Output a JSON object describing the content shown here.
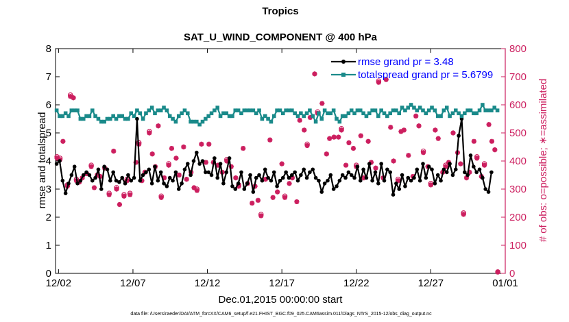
{
  "chart_data": {
    "type": "line",
    "title": "Tropics",
    "subtitle": "SAT_U_WIND_COMPONENT @ 400 hPa",
    "xlabel": "Dec.01,2015 00:00:00 start",
    "ylabel_left": "rmse and totalspread",
    "ylabel_right": "# of obs: o=possible; ∗=assimilated",
    "footnote": "data file: /Users/raeder/DAI/ATM_forcXX/CAM6_setup/f.e21.FHIST_BGC.f09_025.CAM6assim.011/Diags_NTrS_2015-12/obs_diag_output.nc",
    "x_unit": "days since Dec.01,2015 00:00",
    "xlim": [
      0.8,
      31.0
    ],
    "ylim_left": [
      0,
      8
    ],
    "ylim_right": [
      0,
      800
    ],
    "xticks": [
      1,
      6,
      11,
      16,
      21,
      26,
      31
    ],
    "xtick_labels": [
      "12/02",
      "12/07",
      "12/12",
      "12/17",
      "12/22",
      "12/27",
      "01/01"
    ],
    "yticks_left": [
      0,
      1,
      2,
      3,
      4,
      5,
      6,
      7,
      8
    ],
    "yticks_right": [
      0,
      100,
      200,
      300,
      400,
      500,
      600,
      700,
      800
    ],
    "colors": {
      "rmse": "#000000",
      "spread": "#1a8a8a",
      "obs": "#cc1f5f",
      "legend_text": "#0000ff"
    },
    "legend": {
      "position": "top-right",
      "entries": [
        "rmse grand pr = 3.48",
        "totalspread grand pr = 5.6799"
      ]
    },
    "series": [
      {
        "name": "rmse",
        "axis": "left",
        "values": [
          3.9,
          4.0,
          3.3,
          2.85,
          3.2,
          3.5,
          3.8,
          3.2,
          3.3,
          3.5,
          3.6,
          3.5,
          3.3,
          3.4,
          3.7,
          3.0,
          3.8,
          3.7,
          3.3,
          3.6,
          3.3,
          3.25,
          3.4,
          3.2,
          3.5,
          3.3,
          3.4,
          5.5,
          3.3,
          3.5,
          3.6,
          3.7,
          3.2,
          3.8,
          3.3,
          3.6,
          3.2,
          3.1,
          3.4,
          3.3,
          3.6,
          3.0,
          3.2,
          3.7,
          3.9,
          3.5,
          4.0,
          4.3,
          3.9,
          4.0,
          3.6,
          3.6,
          3.5,
          4.1,
          3.4,
          3.9,
          3.2,
          3.6,
          4.1,
          3.1,
          3.0,
          3.2,
          3.6,
          3.0,
          3.2,
          3.5,
          2.9,
          3.4,
          3.5,
          3.3,
          3.7,
          3.4,
          3.3,
          3.6,
          3.1,
          3.3,
          3.4,
          3.6,
          3.4,
          3.5,
          3.6,
          3.3,
          3.5,
          3.7,
          3.4,
          3.6,
          3.7,
          3.4,
          3.3,
          2.9,
          3.2,
          3.3,
          3.5,
          3.0,
          3.1,
          3.3,
          3.5,
          3.4,
          3.6,
          3.5,
          3.4,
          3.8,
          3.3,
          3.7,
          3.4,
          3.9,
          3.3,
          3.6,
          3.2,
          3.9,
          3.3,
          3.7,
          3.6,
          2.8,
          3.2,
          3.0,
          3.5,
          3.1,
          3.4,
          3.3,
          3.4,
          3.7,
          3.3,
          3.9,
          3.4,
          3.8,
          3.7,
          3.2,
          3.5,
          3.3,
          3.7,
          3.6,
          3.9,
          3.5,
          3.7,
          4.9,
          5.5,
          3.6,
          3.5,
          4.2,
          3.8,
          3.6,
          3.7,
          3.4,
          3.0,
          2.9,
          3.6
        ],
        "x_start": 0.875,
        "x_step": 0.2
      },
      {
        "name": "totalspread",
        "axis": "left",
        "values": [
          5.8,
          5.6,
          5.6,
          5.7,
          5.6,
          5.8,
          5.8,
          5.8,
          5.5,
          5.5,
          5.6,
          5.6,
          5.8,
          5.6,
          5.5,
          5.4,
          5.4,
          5.5,
          5.5,
          5.6,
          5.5,
          5.6,
          5.6,
          5.5,
          5.5,
          5.7,
          5.6,
          5.8,
          5.7,
          5.5,
          5.7,
          5.8,
          5.9,
          5.7,
          5.8,
          5.8,
          5.9,
          5.8,
          5.6,
          5.5,
          5.4,
          5.6,
          5.7,
          5.8,
          5.7,
          5.4,
          5.4,
          5.4,
          5.3,
          5.4,
          5.5,
          5.6,
          5.7,
          5.8,
          5.9,
          5.6,
          5.7,
          5.7,
          5.6,
          5.6,
          5.8,
          5.8,
          5.7,
          5.8,
          5.8,
          5.8,
          5.8,
          5.7,
          5.8,
          5.5,
          5.6,
          5.5,
          5.4,
          5.6,
          5.8,
          5.8,
          5.7,
          5.8,
          5.8,
          5.8,
          5.7,
          5.6,
          5.7,
          5.6,
          5.7,
          5.8,
          5.6,
          5.4,
          5.7,
          5.5,
          5.8,
          5.7,
          5.7,
          5.8,
          5.5,
          5.4,
          5.6,
          5.6,
          5.7,
          5.8,
          5.7,
          5.8,
          5.8,
          5.7,
          5.6,
          5.7,
          5.8,
          5.8,
          5.6,
          5.8,
          5.7,
          5.6,
          5.7,
          5.8,
          5.8,
          5.7,
          5.9,
          5.8,
          5.9,
          6.0,
          5.9,
          5.8,
          5.9,
          5.8,
          5.7,
          5.8,
          5.9,
          5.8,
          5.6,
          5.6,
          5.8,
          5.9,
          5.6,
          5.7,
          5.8,
          5.7,
          5.6,
          5.7,
          5.8,
          5.8,
          5.7,
          5.7,
          5.8,
          6.0,
          5.8,
          5.8,
          5.8,
          5.9,
          5.8
        ],
        "x_start": 0.875,
        "x_step": 0.2
      }
    ],
    "obs_assimilated": [
      [
        0.9,
        410
      ],
      [
        1.1,
        405
      ],
      [
        1.3,
        470
      ],
      [
        1.6,
        310
      ],
      [
        1.8,
        630
      ],
      [
        2.0,
        625
      ],
      [
        2.2,
        330
      ],
      [
        2.4,
        325
      ],
      [
        2.6,
        340
      ],
      [
        2.9,
        355
      ],
      [
        3.2,
        380
      ],
      [
        3.4,
        305
      ],
      [
        3.6,
        350
      ],
      [
        3.8,
        345
      ],
      [
        4.1,
        375
      ],
      [
        4.4,
        280
      ],
      [
        4.7,
        435
      ],
      [
        4.9,
        300
      ],
      [
        5.1,
        245
      ],
      [
        5.4,
        275
      ],
      [
        5.6,
        330
      ],
      [
        5.8,
        280
      ],
      [
        6.2,
        395
      ],
      [
        6.4,
        460
      ],
      [
        6.6,
        330
      ],
      [
        6.8,
        360
      ],
      [
        7.1,
        500
      ],
      [
        7.3,
        425
      ],
      [
        7.5,
        380
      ],
      [
        7.7,
        525
      ],
      [
        7.9,
        270
      ],
      [
        8.1,
        340
      ],
      [
        8.4,
        385
      ],
      [
        8.6,
        445
      ],
      [
        8.9,
        410
      ],
      [
        9.1,
        350
      ],
      [
        9.4,
        450
      ],
      [
        9.6,
        335
      ],
      [
        9.9,
        360
      ],
      [
        10.1,
        305
      ],
      [
        10.3,
        295
      ],
      [
        10.6,
        460
      ],
      [
        10.9,
        395
      ],
      [
        11.1,
        460
      ],
      [
        11.4,
        395
      ],
      [
        11.7,
        385
      ],
      [
        12.0,
        360
      ],
      [
        12.3,
        400
      ],
      [
        12.6,
        380
      ],
      [
        12.9,
        340
      ],
      [
        13.1,
        310
      ],
      [
        13.4,
        445
      ],
      [
        13.7,
        320
      ],
      [
        14.0,
        250
      ],
      [
        14.2,
        310
      ],
      [
        14.4,
        260
      ],
      [
        14.6,
        205
      ],
      [
        14.9,
        335
      ],
      [
        15.2,
        475
      ],
      [
        15.4,
        270
      ],
      [
        15.7,
        290
      ],
      [
        16.0,
        390
      ],
      [
        16.2,
        270
      ],
      [
        16.5,
        320
      ],
      [
        16.7,
        340
      ],
      [
        17.0,
        255
      ],
      [
        17.2,
        545
      ],
      [
        17.5,
        510
      ],
      [
        17.7,
        455
      ],
      [
        17.9,
        555
      ],
      [
        18.2,
        710
      ],
      [
        18.4,
        570
      ],
      [
        18.7,
        605
      ],
      [
        19.0,
        425
      ],
      [
        19.2,
        480
      ],
      [
        19.5,
        485
      ],
      [
        19.8,
        485
      ],
      [
        20.0,
        510
      ],
      [
        20.3,
        385
      ],
      [
        20.5,
        465
      ],
      [
        20.8,
        445
      ],
      [
        21.0,
        380
      ],
      [
        21.3,
        490
      ],
      [
        21.5,
        340
      ],
      [
        21.8,
        470
      ],
      [
        22.0,
        395
      ],
      [
        22.3,
        375
      ],
      [
        22.5,
        680
      ],
      [
        22.8,
        340
      ],
      [
        23.0,
        690
      ],
      [
        23.3,
        520
      ],
      [
        23.5,
        400
      ],
      [
        23.8,
        330
      ],
      [
        24.0,
        505
      ],
      [
        24.2,
        510
      ],
      [
        24.5,
        420
      ],
      [
        24.8,
        345
      ],
      [
        25.0,
        560
      ],
      [
        25.2,
        525
      ],
      [
        25.5,
        430
      ],
      [
        25.8,
        380
      ],
      [
        26.0,
        315
      ],
      [
        26.3,
        510
      ],
      [
        26.5,
        480
      ],
      [
        26.8,
        360
      ],
      [
        27.0,
        380
      ],
      [
        27.2,
        395
      ],
      [
        27.5,
        500
      ],
      [
        27.8,
        430
      ],
      [
        28.0,
        390
      ],
      [
        28.2,
        210
      ],
      [
        28.4,
        340
      ],
      [
        28.6,
        360
      ],
      [
        28.9,
        470
      ],
      [
        29.1,
        410
      ],
      [
        29.4,
        345
      ],
      [
        29.6,
        385
      ],
      [
        29.9,
        530
      ],
      [
        30.1,
        470
      ],
      [
        30.3,
        440
      ],
      [
        30.5,
        5
      ]
    ],
    "obs_possible": [
      [
        0.9,
        415
      ],
      [
        1.1,
        410
      ],
      [
        1.6,
        315
      ],
      [
        1.8,
        635
      ],
      [
        2.2,
        335
      ],
      [
        3.2,
        385
      ],
      [
        4.4,
        285
      ],
      [
        4.9,
        305
      ],
      [
        5.4,
        280
      ],
      [
        5.6,
        335
      ],
      [
        5.8,
        285
      ],
      [
        6.4,
        465
      ],
      [
        7.1,
        505
      ],
      [
        7.9,
        275
      ],
      [
        8.4,
        390
      ],
      [
        10.3,
        300
      ],
      [
        12.3,
        405
      ],
      [
        13.1,
        315
      ],
      [
        14.6,
        210
      ],
      [
        16.2,
        275
      ],
      [
        17.7,
        460
      ],
      [
        18.4,
        575
      ],
      [
        20.0,
        515
      ],
      [
        21.0,
        385
      ],
      [
        22.5,
        685
      ],
      [
        23.8,
        335
      ],
      [
        25.5,
        435
      ],
      [
        26.0,
        320
      ],
      [
        27.0,
        385
      ],
      [
        28.2,
        215
      ],
      [
        29.1,
        415
      ],
      [
        29.6,
        390
      ],
      [
        30.5,
        5
      ]
    ]
  }
}
